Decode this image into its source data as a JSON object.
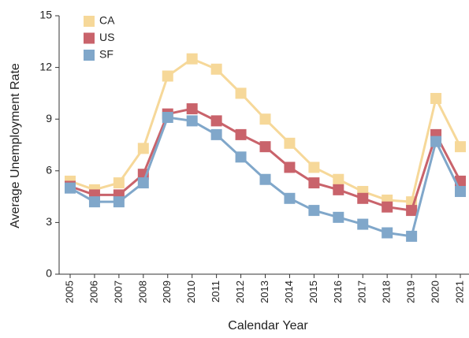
{
  "chart_data": {
    "type": "line",
    "xlabel": "Calendar Year",
    "ylabel": "Average Unemployment Rate",
    "categories": [
      "2005",
      "2006",
      "2007",
      "2008",
      "2009",
      "2010",
      "2011",
      "2012",
      "2013",
      "2014",
      "2015",
      "2016",
      "2017",
      "2018",
      "2019",
      "2020",
      "2021"
    ],
    "series": [
      {
        "name": "CA",
        "color": "#f6d899",
        "values": [
          5.4,
          4.9,
          5.3,
          7.3,
          11.5,
          12.5,
          11.9,
          10.5,
          9.0,
          7.6,
          6.2,
          5.5,
          4.8,
          4.3,
          4.2,
          10.2,
          7.4
        ]
      },
      {
        "name": "US",
        "color": "#c9636b",
        "values": [
          5.1,
          4.6,
          4.6,
          5.8,
          9.3,
          9.6,
          8.9,
          8.1,
          7.4,
          6.2,
          5.3,
          4.9,
          4.4,
          3.9,
          3.7,
          8.1,
          5.4
        ]
      },
      {
        "name": "SF",
        "color": "#80a7ca",
        "values": [
          5.0,
          4.2,
          4.2,
          5.3,
          9.1,
          8.9,
          8.1,
          6.8,
          5.5,
          4.4,
          3.7,
          3.3,
          2.9,
          2.4,
          2.2,
          7.7,
          4.8
        ]
      }
    ],
    "ylim": [
      0,
      15
    ],
    "yticks": [
      0,
      3,
      6,
      9,
      12,
      15
    ],
    "grid": false,
    "legend": "upper left"
  }
}
